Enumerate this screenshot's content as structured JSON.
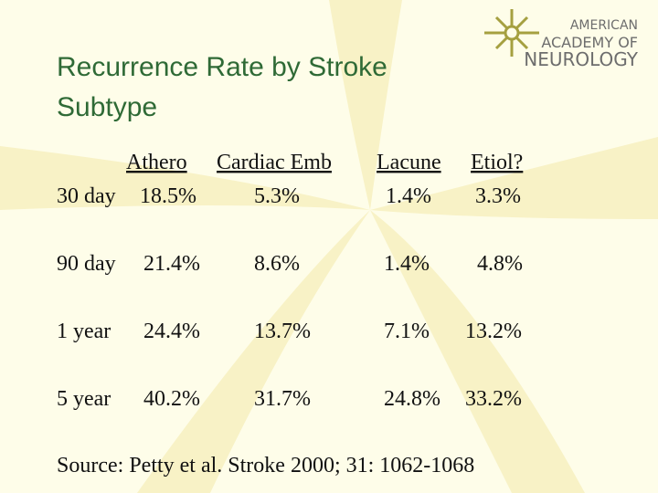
{
  "logo": {
    "lines": [
      "AMERICAN",
      "ACADEMY OF",
      "NEUROLOGY"
    ]
  },
  "title": "Recurrence Rate by Stroke Subtype",
  "table": {
    "header": [
      "Athero",
      "Cardiac Emb",
      "Lacune",
      "Etiol?"
    ],
    "rows": [
      [
        "30 day",
        "18.5%",
        "5.3%",
        "1.4%",
        "3.3%"
      ],
      [
        "90 day",
        "21.4%",
        "8.6%",
        "1.4%",
        "4.8%"
      ],
      [
        "1 year",
        "24.4%",
        "13.7%",
        "7.1%",
        "13.2%"
      ],
      [
        "5 year",
        "40.2%",
        "31.7%",
        "24.8%",
        "33.2%"
      ]
    ]
  },
  "source": "Source: Petty et al. Stroke 2000; 31: 1062-1068"
}
